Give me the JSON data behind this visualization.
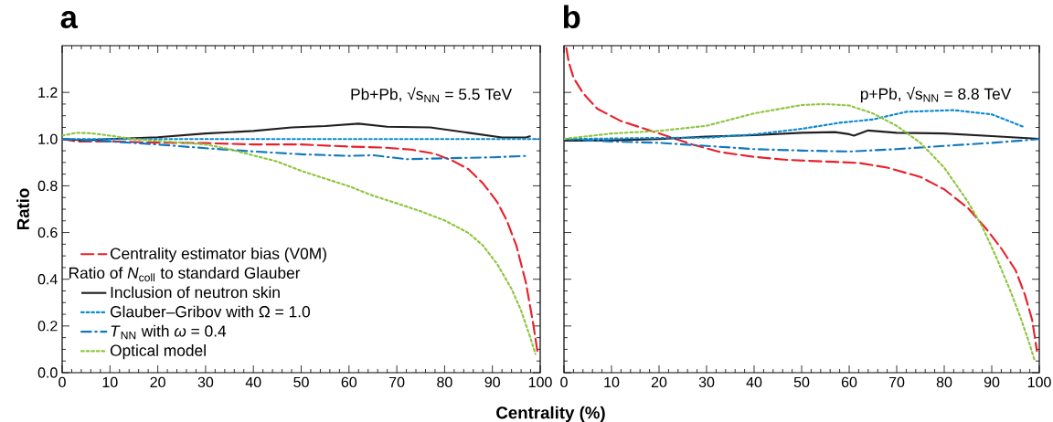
{
  "chart_data": [
    {
      "type": "line",
      "title": "a",
      "xlabel": "Centrality (%)",
      "ylabel": "Ratio",
      "legend_title": "Ratio of *N*$_{coll}$ to standard Glauber",
      "annotations": [
        "Pb+Pb, √s$_{NN}$ = 5.5 TeV"
      ],
      "xlim": [
        0,
        100
      ],
      "ylim": [
        0,
        1.4
      ],
      "xticks": [
        0,
        10,
        20,
        30,
        40,
        50,
        60,
        70,
        80,
        90,
        100
      ],
      "yticks": [
        {
          "value": 0,
          "label": "0.0"
        },
        {
          "value": 0.2,
          "label": "0.2"
        },
        {
          "value": 0.4,
          "label": "0.4"
        },
        {
          "value": 0.6,
          "label": "0.6"
        },
        {
          "value": 0.8,
          "label": "0.8"
        },
        {
          "value": 1.0,
          "label": "1.0"
        },
        {
          "value": 1.2,
          "label": "1.2"
        }
      ],
      "grid": false,
      "legend": "bottom left",
      "marker": "none",
      "series": [
        {
          "name": "Centrality estimator bias (V0M)",
          "color": "#e8202a",
          "line_style": "dashed",
          "x": [
            0,
            3,
            10,
            20,
            30,
            40,
            50,
            60,
            67,
            73,
            78,
            82,
            85,
            88,
            91,
            93,
            95,
            97,
            98.5,
            99.5
          ],
          "values": [
            1.0,
            0.99,
            0.99,
            0.985,
            0.983,
            0.977,
            0.977,
            0.968,
            0.964,
            0.955,
            0.937,
            0.904,
            0.871,
            0.811,
            0.731,
            0.652,
            0.545,
            0.386,
            0.213,
            0.08
          ]
        },
        {
          "name": "Inclusion of neutron skin",
          "color": "#231f20",
          "line_style": "solid",
          "x": [
            0,
            5,
            10,
            20,
            30,
            40,
            48,
            55,
            62,
            68,
            77,
            85,
            92,
            97,
            98
          ],
          "values": [
            1.0,
            0.995,
            1.0,
            1.008,
            1.024,
            1.035,
            1.05,
            1.056,
            1.066,
            1.053,
            1.05,
            1.027,
            1.007,
            1.007,
            1.013
          ]
        },
        {
          "name": "Glauber–Gribov with Ω = 1.0",
          "color": "#0a8ad2",
          "line_style": "dotted",
          "x": [
            0,
            50,
            100
          ],
          "values": [
            1.0,
            1.0,
            1.0
          ]
        },
        {
          "name": "*T*$_{NN}$ with *ω* = 0.4",
          "color": "#1078c0",
          "line_style": "dashdot",
          "x": [
            0,
            10,
            20,
            30,
            40,
            50,
            60,
            65,
            72,
            80,
            90,
            97
          ],
          "values": [
            1.0,
            0.99,
            0.977,
            0.961,
            0.947,
            0.935,
            0.928,
            0.931,
            0.914,
            0.918,
            0.922,
            0.928
          ]
        },
        {
          "name": "Optical model",
          "color": "#8dc63f",
          "line_style": "dotted",
          "x": [
            0,
            3,
            6,
            10,
            15,
            20,
            25,
            30,
            35,
            40,
            45,
            50,
            55,
            60,
            65,
            70,
            75,
            80,
            85,
            88,
            91,
            94,
            96,
            98,
            99
          ],
          "values": [
            1.015,
            1.027,
            1.025,
            1.015,
            1.0,
            0.992,
            0.985,
            0.977,
            0.957,
            0.93,
            0.904,
            0.864,
            0.831,
            0.798,
            0.758,
            0.725,
            0.691,
            0.652,
            0.598,
            0.545,
            0.465,
            0.359,
            0.266,
            0.146,
            0.08
          ]
        }
      ]
    },
    {
      "type": "line",
      "title": "b",
      "annotations": [
        "p+Pb, √s$_{NN}$ = 8.8 TeV"
      ],
      "xlim": [
        0,
        100
      ],
      "ylim": [
        0,
        1.4
      ],
      "xticks": [
        0,
        10,
        20,
        30,
        40,
        50,
        60,
        70,
        80,
        90,
        100
      ],
      "yticks": [
        0,
        0.2,
        0.4,
        0.6,
        0.8,
        1.0,
        1.2
      ],
      "tick_labels": "x",
      "grid": false,
      "marker": "none",
      "series": [
        {
          "color": "#e8202a",
          "line_style": "dashed",
          "x": [
            0.5,
            1,
            2,
            4,
            7,
            12,
            17,
            22,
            27,
            33,
            40,
            47,
            55,
            62,
            68,
            75,
            80,
            85,
            89,
            92,
            95,
            97,
            98.5,
            99.5
          ],
          "values": [
            1.39,
            1.33,
            1.263,
            1.197,
            1.13,
            1.077,
            1.044,
            1.011,
            0.977,
            0.944,
            0.924,
            0.911,
            0.904,
            0.898,
            0.878,
            0.838,
            0.785,
            0.705,
            0.612,
            0.532,
            0.439,
            0.332,
            0.226,
            0.093
          ]
        },
        {
          "color": "#231f20",
          "line_style": "solid",
          "x": [
            0,
            10,
            20,
            30,
            40,
            50,
            57,
            60,
            61,
            64,
            70,
            80,
            90,
            100
          ],
          "values": [
            0.993,
            0.995,
            1.0,
            1.011,
            1.017,
            1.027,
            1.03,
            1.021,
            1.015,
            1.037,
            1.027,
            1.024,
            1.013,
            1.001
          ]
        },
        {
          "color": "#0a8ad2",
          "line_style": "dotted",
          "x": [
            0,
            20,
            30,
            40,
            50,
            58,
            65,
            72,
            82,
            90,
            97
          ],
          "values": [
            1.0,
            1.005,
            1.006,
            1.02,
            1.044,
            1.07,
            1.084,
            1.117,
            1.124,
            1.106,
            1.05
          ]
        },
        {
          "color": "#1078c0",
          "line_style": "dashdot",
          "x": [
            0,
            10,
            20,
            30,
            40,
            50,
            60,
            70,
            80,
            90,
            100
          ],
          "values": [
            1.0,
            0.99,
            0.984,
            0.971,
            0.957,
            0.951,
            0.947,
            0.957,
            0.971,
            0.984,
            1.0
          ]
        },
        {
          "color": "#8dc63f",
          "line_style": "dotted",
          "x": [
            0,
            10,
            20,
            30,
            40,
            50,
            55,
            60,
            65,
            70,
            75,
            80,
            85,
            88,
            91,
            94,
            96,
            98,
            99
          ],
          "values": [
            1.001,
            1.024,
            1.035,
            1.057,
            1.11,
            1.146,
            1.15,
            1.144,
            1.11,
            1.057,
            0.984,
            0.878,
            0.731,
            0.625,
            0.492,
            0.346,
            0.239,
            0.12,
            0.053
          ]
        }
      ]
    }
  ]
}
